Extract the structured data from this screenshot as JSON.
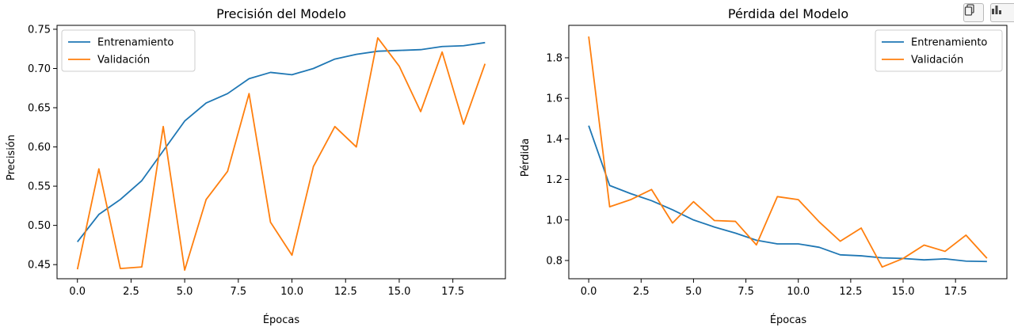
{
  "toolbar": {
    "buttons": [
      {
        "name": "copy-icon"
      },
      {
        "name": "chart-icon"
      }
    ]
  },
  "colors": {
    "train": "#1f77b4",
    "val": "#ff7f0e"
  },
  "chart_data": [
    {
      "type": "line",
      "title": "Precisión del Modelo",
      "xlabel": "Épocas",
      "ylabel": "Precisión",
      "xlim": [
        -0.95,
        19.95
      ],
      "ylim": [
        0.432,
        0.755
      ],
      "xticks": [
        0,
        2.5,
        5,
        7.5,
        10,
        12.5,
        15,
        17.5
      ],
      "xtick_labels": [
        "0.0",
        "2.5",
        "5.0",
        "7.5",
        "10.0",
        "12.5",
        "15.0",
        "17.5"
      ],
      "yticks": [
        0.45,
        0.5,
        0.55,
        0.6,
        0.65,
        0.7,
        0.75
      ],
      "ytick_labels": [
        "0.45",
        "0.50",
        "0.55",
        "0.60",
        "0.65",
        "0.70",
        "0.75"
      ],
      "legend": "upper-left",
      "grid": false,
      "x": [
        0,
        1,
        2,
        3,
        4,
        5,
        6,
        7,
        8,
        9,
        10,
        11,
        12,
        13,
        14,
        15,
        16,
        17,
        18,
        19
      ],
      "series": [
        {
          "name": "Entrenamiento",
          "values": [
            0.479,
            0.514,
            0.533,
            0.557,
            0.595,
            0.633,
            0.656,
            0.668,
            0.687,
            0.695,
            0.692,
            0.7,
            0.712,
            0.718,
            0.722,
            0.723,
            0.724,
            0.728,
            0.729,
            0.733
          ]
        },
        {
          "name": "Validación",
          "values": [
            0.444,
            0.572,
            0.445,
            0.447,
            0.626,
            0.443,
            0.533,
            0.569,
            0.668,
            0.504,
            0.462,
            0.575,
            0.626,
            0.6,
            0.739,
            0.703,
            0.645,
            0.721,
            0.629,
            0.706
          ]
        }
      ]
    },
    {
      "type": "line",
      "title": "Pérdida del Modelo",
      "xlabel": "Épocas",
      "ylabel": "Pérdida",
      "xlim": [
        -0.95,
        19.95
      ],
      "ylim": [
        0.71,
        1.96
      ],
      "xticks": [
        0,
        2.5,
        5,
        7.5,
        10,
        12.5,
        15,
        17.5
      ],
      "xtick_labels": [
        "0.0",
        "2.5",
        "5.0",
        "7.5",
        "10.0",
        "12.5",
        "15.0",
        "17.5"
      ],
      "yticks": [
        0.8,
        1.0,
        1.2,
        1.4,
        1.6,
        1.8
      ],
      "ytick_labels": [
        "0.8",
        "1.0",
        "1.2",
        "1.4",
        "1.6",
        "1.8"
      ],
      "legend": "upper-right",
      "grid": false,
      "x": [
        0,
        1,
        2,
        3,
        4,
        5,
        6,
        7,
        8,
        9,
        10,
        11,
        12,
        13,
        14,
        15,
        16,
        17,
        18,
        19
      ],
      "series": [
        {
          "name": "Entrenamiento",
          "values": [
            1.465,
            1.17,
            1.13,
            1.095,
            1.05,
            1.0,
            0.965,
            0.935,
            0.9,
            0.882,
            0.882,
            0.865,
            0.828,
            0.823,
            0.813,
            0.81,
            0.803,
            0.808,
            0.797,
            0.795
          ]
        },
        {
          "name": "Validación",
          "values": [
            1.905,
            1.065,
            1.1,
            1.15,
            0.985,
            1.09,
            0.997,
            0.993,
            0.877,
            1.115,
            1.1,
            0.99,
            0.895,
            0.96,
            0.768,
            0.81,
            0.876,
            0.845,
            0.925,
            0.811
          ]
        }
      ]
    }
  ]
}
